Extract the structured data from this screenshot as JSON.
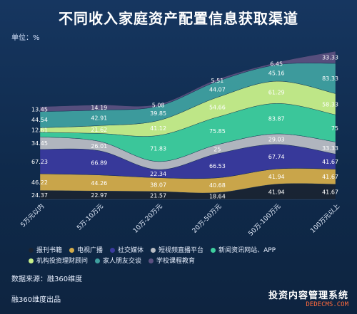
{
  "title": "不同收入家庭资产配置信息获取渠道",
  "unit_label": "单位：%",
  "source": "数据来源：融360维度",
  "footer": "融360维度出品",
  "watermark": {
    "line1": "投资内容管理系统",
    "line2": "DEDECMS.COM"
  },
  "colors": {
    "报刊书籍": "#1a2433",
    "电视广播": "#d4ac4a",
    "社交媒体": "#3a3a9e",
    "短视频直播平台": "#b9bdc4",
    "新闻资讯网站、APP": "#3ecf9e",
    "机构投资理财顾问": "#c8f08a",
    "家人朋友交谈": "#3fa0a0",
    "学校课程教育": "#5a5080"
  },
  "chart_data": {
    "type": "area",
    "stacked": true,
    "categories": [
      "5万元以内",
      "5万-10万元",
      "10万-20万元",
      "20万-50万元",
      "50万-100万元",
      "100万元以上"
    ],
    "series": [
      {
        "name": "报刊书籍",
        "values": [
          24.37,
          22.97,
          21.57,
          18.64,
          41.94,
          41.67
        ]
      },
      {
        "name": "电视广播",
        "values": [
          46.22,
          44.26,
          38.07,
          40.68,
          41.94,
          41.67
        ]
      },
      {
        "name": "社交媒体",
        "values": [
          67.23,
          66.89,
          22.34,
          66.53,
          67.74,
          41.67
        ]
      },
      {
        "name": "短视频直播平台",
        "values": [
          34.45,
          26.01,
          22.34,
          25,
          29.03,
          33.33
        ]
      },
      {
        "name": "新闻资讯网站、APP",
        "values": [
          12.61,
          21.62,
          71.83,
          75.85,
          83.87,
          75
        ]
      },
      {
        "name": "机构投资理财顾问",
        "values": [
          12.61,
          21.62,
          41.12,
          54.66,
          61.29,
          58.33
        ]
      },
      {
        "name": "家人朋友交谈",
        "values": [
          44.54,
          42.91,
          39.85,
          44.07,
          45.16,
          83.33
        ]
      },
      {
        "name": "学校课程教育",
        "values": [
          13.45,
          14.19,
          5.08,
          5.51,
          6.45,
          33.33
        ]
      }
    ],
    "labels": [
      [
        "24.37",
        "22.97",
        "21.57",
        "18.64",
        "41.94",
        "41.67"
      ],
      [
        "46.22",
        "44.26",
        "38.07",
        "40.68",
        "41.94",
        "41.67"
      ],
      [
        "67.23",
        "66.89",
        "22.34",
        "66.53",
        "67.74",
        "41.67"
      ],
      [
        "34.45",
        "26.01",
        "",
        "25",
        "29.03",
        "33.33"
      ],
      [
        "",
        "",
        "71.83",
        "75.85",
        "83.87",
        "75"
      ],
      [
        "12.61",
        "21.62",
        "41.12",
        "54.66",
        "61.29",
        "58.33"
      ],
      [
        "44.54",
        "42.91",
        "39.85",
        "44.07",
        "45.16",
        "83.33"
      ],
      [
        "13.45",
        "14.19",
        "5.08",
        "5.51",
        "6.45",
        "33.33"
      ]
    ],
    "legend_position": "bottom"
  }
}
